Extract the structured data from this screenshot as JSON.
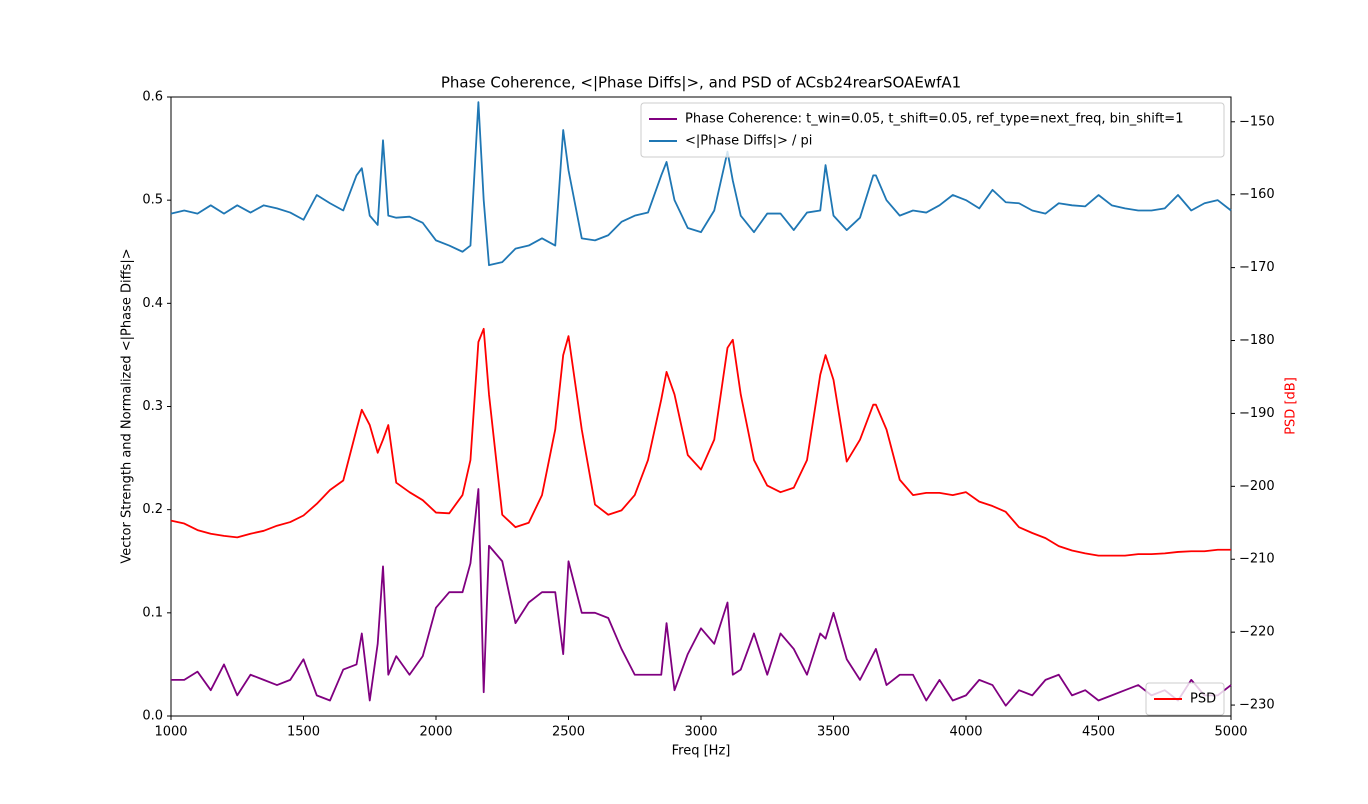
{
  "chart_data": {
    "type": "line",
    "title": "Phase Coherence, <|Phase Diffs|>, and PSD of ACsb24rearSOAEwfA1",
    "x_label": "Freq [Hz]",
    "y_label": "Vector Strength and Normalized <|Phase Diffs|>",
    "y2_label": "PSD [dB]",
    "y2_label_color": "#ff0000",
    "x": [
      1000,
      1050,
      1100,
      1150,
      1200,
      1250,
      1300,
      1350,
      1400,
      1450,
      1500,
      1550,
      1600,
      1650,
      1700,
      1720,
      1750,
      1780,
      1800,
      1820,
      1850,
      1900,
      1950,
      2000,
      2050,
      2100,
      2130,
      2160,
      2180,
      2200,
      2250,
      2300,
      2350,
      2400,
      2450,
      2480,
      2500,
      2550,
      2600,
      2650,
      2700,
      2750,
      2800,
      2850,
      2870,
      2900,
      2950,
      3000,
      3050,
      3100,
      3120,
      3150,
      3200,
      3250,
      3300,
      3350,
      3400,
      3450,
      3470,
      3500,
      3550,
      3600,
      3650,
      3660,
      3700,
      3750,
      3800,
      3850,
      3900,
      3950,
      4000,
      4050,
      4100,
      4150,
      4200,
      4250,
      4300,
      4350,
      4400,
      4450,
      4500,
      4550,
      4600,
      4650,
      4700,
      4750,
      4800,
      4850,
      4900,
      4950,
      5000
    ],
    "xlim": [
      1000,
      5000
    ],
    "xticks": [
      1000,
      1500,
      2000,
      2500,
      3000,
      3500,
      4000,
      4500,
      5000
    ],
    "ylim": [
      0,
      0.6
    ],
    "yticks": [
      {
        "value": 0,
        "label": "0.0"
      },
      0.1,
      0.2,
      0.3,
      0.4,
      0.5,
      0.6
    ],
    "y2lim": [
      -231.5,
      -146.6
    ],
    "y2ticks": [
      {
        "value": -230,
        "label": "−230"
      },
      {
        "value": -220,
        "label": "−220"
      },
      {
        "value": -210,
        "label": "−210"
      },
      {
        "value": -200,
        "label": "−200"
      },
      {
        "value": -190,
        "label": "−190"
      },
      {
        "value": -180,
        "label": "−180"
      },
      {
        "value": -170,
        "label": "−170"
      },
      {
        "value": -160,
        "label": "−160"
      },
      {
        "value": -150,
        "label": "−150"
      }
    ],
    "series": [
      {
        "name": "Phase Coherence: t_win=0.05, t_shift=0.05, ref_type=next_freq, bin_shift=1",
        "color": "#800080",
        "axis": "y",
        "values": [
          0.035,
          0.035,
          0.043,
          0.025,
          0.05,
          0.02,
          0.04,
          0.035,
          0.03,
          0.035,
          0.055,
          0.02,
          0.015,
          0.045,
          0.05,
          0.08,
          0.015,
          0.07,
          0.145,
          0.04,
          0.058,
          0.04,
          0.058,
          0.105,
          0.12,
          0.12,
          0.148,
          0.22,
          0.023,
          0.165,
          0.15,
          0.09,
          0.11,
          0.12,
          0.12,
          0.06,
          0.15,
          0.1,
          0.1,
          0.095,
          0.065,
          0.04,
          0.04,
          0.04,
          0.09,
          0.025,
          0.06,
          0.085,
          0.07,
          0.11,
          0.04,
          0.045,
          0.08,
          0.04,
          0.08,
          0.065,
          0.04,
          0.08,
          0.075,
          0.1,
          0.055,
          0.035,
          0.06,
          0.065,
          0.03,
          0.04,
          0.04,
          0.015,
          0.035,
          0.015,
          0.02,
          0.035,
          0.03,
          0.01,
          0.025,
          0.02,
          0.035,
          0.04,
          0.02,
          0.025,
          0.015,
          0.02,
          0.025,
          0.03,
          0.02,
          0.025,
          0.015,
          0.035,
          0.02,
          0.02,
          0.03
        ]
      },
      {
        "name": "<|Phase Diffs|> / pi",
        "color": "#1f77b4",
        "axis": "y",
        "values": [
          0.487,
          0.49,
          0.487,
          0.495,
          0.487,
          0.495,
          0.488,
          0.495,
          0.492,
          0.488,
          0.481,
          0.505,
          0.497,
          0.49,
          0.524,
          0.531,
          0.485,
          0.476,
          0.558,
          0.485,
          0.483,
          0.484,
          0.478,
          0.461,
          0.456,
          0.45,
          0.456,
          0.595,
          0.5,
          0.437,
          0.44,
          0.453,
          0.456,
          0.463,
          0.456,
          0.568,
          0.529,
          0.463,
          0.461,
          0.466,
          0.479,
          0.485,
          0.488,
          0.524,
          0.537,
          0.5,
          0.473,
          0.469,
          0.49,
          0.547,
          0.519,
          0.485,
          0.469,
          0.487,
          0.487,
          0.471,
          0.488,
          0.49,
          0.534,
          0.485,
          0.471,
          0.483,
          0.524,
          0.524,
          0.5,
          0.485,
          0.49,
          0.488,
          0.495,
          0.505,
          0.5,
          0.492,
          0.51,
          0.498,
          0.497,
          0.49,
          0.487,
          0.497,
          0.495,
          0.494,
          0.505,
          0.495,
          0.492,
          0.49,
          0.49,
          0.492,
          0.505,
          0.49,
          0.497,
          0.5,
          0.49
        ]
      },
      {
        "name": "PSD",
        "color": "#ff0000",
        "axis": "y2",
        "values": [
          -204.7,
          -205.1,
          -206,
          -206.5,
          -206.8,
          -207,
          -206.5,
          -206.1,
          -205.4,
          -204.9,
          -204,
          -202.4,
          -200.5,
          -199.2,
          -192.2,
          -189.5,
          -191.6,
          -195.4,
          -193.6,
          -191.6,
          -199.5,
          -200.8,
          -201.9,
          -203.6,
          -203.7,
          -201.2,
          -196.4,
          -180.2,
          -178.4,
          -187.4,
          -203.9,
          -205.6,
          -205,
          -201.2,
          -192.2,
          -182,
          -179.4,
          -192.2,
          -202.5,
          -203.9,
          -203.3,
          -201.2,
          -196.4,
          -188.1,
          -184.3,
          -187.4,
          -195.7,
          -197.7,
          -193.6,
          -181,
          -179.9,
          -187.4,
          -196.4,
          -199.9,
          -200.8,
          -200.2,
          -196.4,
          -184.7,
          -182,
          -185.4,
          -196.6,
          -193.6,
          -188.8,
          -188.8,
          -192.2,
          -199.1,
          -201.2,
          -200.9,
          -200.9,
          -201.2,
          -200.8,
          -202.1,
          -202.7,
          -203.5,
          -205.6,
          -206.4,
          -207.1,
          -208.2,
          -208.8,
          -209.2,
          -209.5,
          -209.5,
          -209.5,
          -209.3,
          -209.3,
          -209.2,
          -209,
          -208.9,
          -208.9,
          -208.7,
          -208.7
        ]
      }
    ]
  }
}
